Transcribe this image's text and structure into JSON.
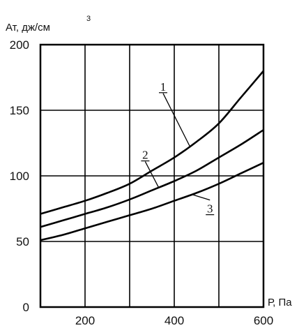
{
  "chart_data": {
    "type": "line",
    "title": "",
    "ylabel": "Ат, дж/см",
    "ylabel_sup": "3",
    "xlabel": "Р, Па",
    "xlim": [
      100,
      600
    ],
    "ylim": [
      0,
      200
    ],
    "x_ticks": [
      200,
      400,
      600
    ],
    "x_grid": [
      200,
      300,
      400,
      500
    ],
    "y_ticks": [
      0,
      50,
      100,
      150,
      200
    ],
    "y_grid": [
      50,
      100,
      150
    ],
    "grid": true,
    "series": [
      {
        "name": "1",
        "x": [
          100,
          150,
          200,
          250,
          300,
          350,
          400,
          450,
          500,
          550,
          600
        ],
        "y": [
          71,
          76,
          81,
          87,
          94,
          104,
          114,
          126,
          140,
          160,
          180
        ]
      },
      {
        "name": "2",
        "x": [
          100,
          150,
          200,
          250,
          300,
          350,
          400,
          450,
          500,
          550,
          600
        ],
        "y": [
          61,
          66,
          71,
          76,
          82,
          89,
          96,
          104,
          114,
          124,
          135
        ]
      },
      {
        "name": "3",
        "x": [
          100,
          150,
          200,
          250,
          300,
          350,
          400,
          450,
          500,
          550,
          600
        ],
        "y": [
          51,
          55,
          60,
          65,
          70,
          75,
          81,
          87,
          94,
          102,
          110
        ]
      }
    ],
    "annotations": [
      {
        "text": "1",
        "series": 0,
        "at_x": 435,
        "label_x": 375,
        "label_y": 165
      },
      {
        "text": "2",
        "series": 1,
        "at_x": 365,
        "label_x": 335,
        "label_y": 113
      },
      {
        "text": "3",
        "series": 2,
        "at_x": 440,
        "label_x": 480,
        "label_y": 72
      }
    ]
  }
}
